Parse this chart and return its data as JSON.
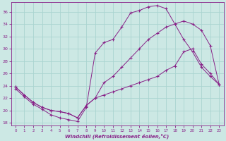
{
  "xlabel": "Windchill (Refroidissement éolien,°C)",
  "bg_color": "#cce8e4",
  "grid_color": "#aad4d0",
  "line_color": "#882288",
  "spine_color": "#882288",
  "xlim": [
    -0.5,
    23.5
  ],
  "ylim": [
    17.5,
    37.5
  ],
  "xticks": [
    0,
    1,
    2,
    3,
    4,
    5,
    6,
    7,
    8,
    9,
    10,
    11,
    12,
    13,
    14,
    15,
    16,
    17,
    18,
    19,
    20,
    21,
    22,
    23
  ],
  "yticks": [
    18,
    20,
    22,
    24,
    26,
    28,
    30,
    32,
    34,
    36
  ],
  "line1_x": [
    0,
    1,
    2,
    3,
    4,
    5,
    6,
    7,
    8,
    9,
    10,
    11,
    12,
    13,
    14,
    15,
    16,
    17,
    18,
    19,
    20,
    21,
    22,
    23
  ],
  "line1_y": [
    23.5,
    22.2,
    21.0,
    20.2,
    19.3,
    18.8,
    18.5,
    18.2,
    20.5,
    29.3,
    31.0,
    31.5,
    33.5,
    35.8,
    36.2,
    36.8,
    37.0,
    36.5,
    34.0,
    31.5,
    29.5,
    27.0,
    25.5,
    24.2
  ],
  "line2_x": [
    0,
    1,
    2,
    3,
    4,
    5,
    6,
    7,
    8,
    9,
    10,
    11,
    12,
    13,
    14,
    15,
    16,
    17,
    18,
    19,
    20,
    21,
    22,
    23
  ],
  "line2_y": [
    23.8,
    22.5,
    21.3,
    20.5,
    20.0,
    19.8,
    19.5,
    18.8,
    20.8,
    22.0,
    24.5,
    25.5,
    27.0,
    28.5,
    30.0,
    31.5,
    32.5,
    33.5,
    34.0,
    34.5,
    34.0,
    33.0,
    30.5,
    24.2
  ],
  "line3_x": [
    0,
    1,
    2,
    3,
    4,
    5,
    6,
    7,
    8,
    9,
    10,
    11,
    12,
    13,
    14,
    15,
    16,
    17,
    18,
    19,
    20,
    21,
    22,
    23
  ],
  "line3_y": [
    23.8,
    22.5,
    21.3,
    20.5,
    20.0,
    19.8,
    19.5,
    18.8,
    20.8,
    22.0,
    22.5,
    23.0,
    23.5,
    24.0,
    24.5,
    25.0,
    25.5,
    26.5,
    27.2,
    29.5,
    30.0,
    27.5,
    26.0,
    24.2
  ]
}
